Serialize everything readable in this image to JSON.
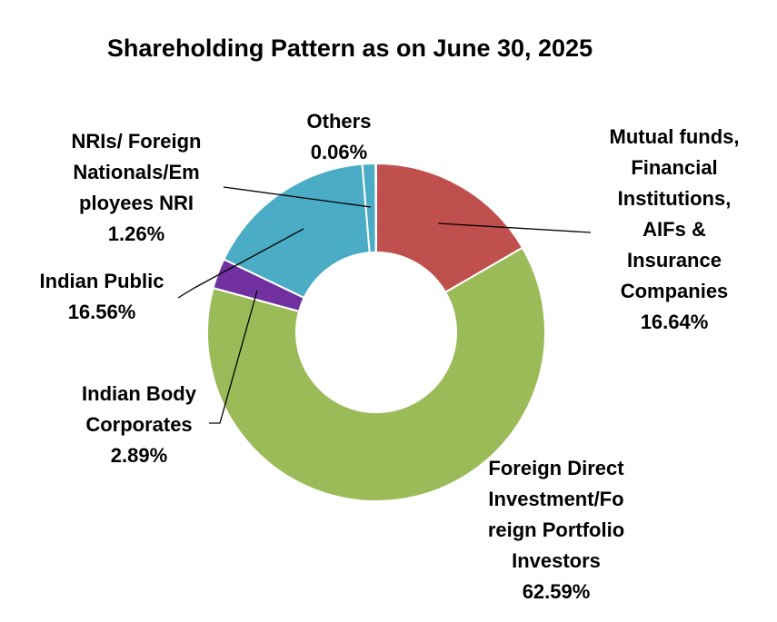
{
  "chart_data": {
    "type": "pie",
    "variant": "donut",
    "title": "Shareholding Pattern as on June 30, 2025",
    "legend": "none",
    "slices": [
      {
        "name": "Mutual funds, Financial Institutions, AIFs & Insurance Companies",
        "label_lines": [
          "Mutual funds,",
          "Financial",
          "Institutions,",
          "AIFs &",
          "Insurance",
          "Companies"
        ],
        "value_label": "16.64%",
        "value": 16.64,
        "color": "#C0504D"
      },
      {
        "name": "Foreign Direct Investment/Foreign Portfolio Investors",
        "label_lines": [
          "Foreign Direct",
          "Investment/Fo",
          "reign Portfolio",
          "Investors"
        ],
        "value_label": "62.59%",
        "value": 62.59,
        "color": "#9BBB59"
      },
      {
        "name": "Indian Body Corporates",
        "label_lines": [
          "Indian Body",
          "Corporates"
        ],
        "value_label": "2.89%",
        "value": 2.89,
        "color": "#7030A0"
      },
      {
        "name": "Indian Public",
        "label_lines": [
          "Indian Public"
        ],
        "value_label": "16.56%",
        "value": 16.56,
        "color": "#4BACC6"
      },
      {
        "name": "NRIs/ Foreign Nationals/Employees NRI",
        "label_lines": [
          "NRIs/ Foreign",
          "Nationals/Em",
          "ployees NRI"
        ],
        "value_label": "1.26%",
        "value": 1.26,
        "color": "#4BACC6"
      },
      {
        "name": "Others",
        "label_lines": [
          "Others"
        ],
        "value_label": "0.06%",
        "value": 0.06,
        "color": "#F07F09"
      }
    ]
  }
}
